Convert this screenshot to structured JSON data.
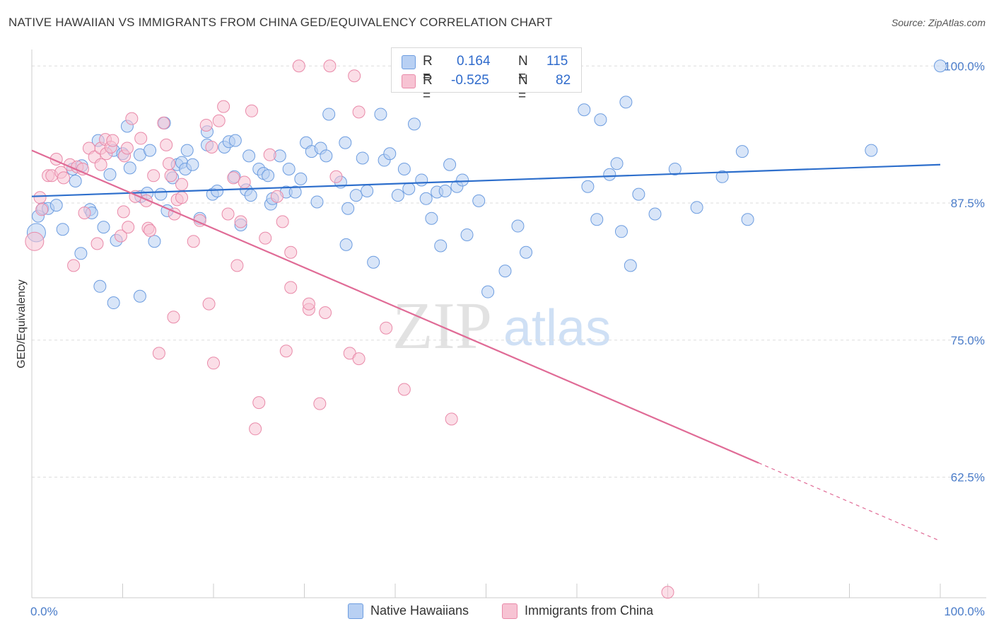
{
  "title": "NATIVE HAWAIIAN VS IMMIGRANTS FROM CHINA GED/EQUIVALENCY CORRELATION CHART",
  "source": "Source: ZipAtlas.com",
  "watermark": {
    "zip": "ZIP",
    "atlas": "atlas"
  },
  "legend_top": {
    "rows": [
      {
        "r_label": "R =",
        "r_value": "0.164",
        "n_label": "N =",
        "n_value": "115"
      },
      {
        "r_label": "R =",
        "r_value": "-0.525",
        "n_label": "N =",
        "n_value": "82"
      }
    ]
  },
  "legend_bottom": {
    "items": [
      "Native Hawaiians",
      "Immigrants from China"
    ]
  },
  "colors": {
    "blue_fill": "#b8d0f3",
    "blue_stroke": "#6d9de0",
    "blue_line": "#2e6fcc",
    "pink_fill": "#f7c3d3",
    "pink_stroke": "#e98aa9",
    "pink_line": "#e06b96",
    "tick_text": "#4a7cc9",
    "grid": "#dddddd"
  },
  "chart_data": {
    "type": "scatter",
    "title": "NATIVE HAWAIIAN VS IMMIGRANTS FROM CHINA GED/EQUIVALENCY CORRELATION CHART",
    "xlabel": "",
    "ylabel": "GED/Equivalency",
    "xlim": [
      0,
      100
    ],
    "ylim": [
      51.5,
      101.5
    ],
    "x_tick_labels": [
      "0.0%",
      "100.0%"
    ],
    "y_ticks": [
      {
        "value": 62.5,
        "label": "62.5%"
      },
      {
        "value": 75.0,
        "label": "75.0%"
      },
      {
        "value": 87.5,
        "label": "87.5%"
      },
      {
        "value": 100.0,
        "label": "100.0%"
      }
    ],
    "grid": true,
    "legend_position": "bottom",
    "series": [
      {
        "name": "Native Hawaiians",
        "trend": {
          "x": [
            0,
            100
          ],
          "y": [
            88.1,
            91.0
          ]
        },
        "points": [
          [
            0.5,
            84.8
          ],
          [
            0.7,
            86.3
          ],
          [
            1.2,
            87.0
          ],
          [
            1.8,
            87.0
          ],
          [
            2.7,
            87.3
          ],
          [
            3.4,
            85.1
          ],
          [
            4.5,
            90.6
          ],
          [
            4.8,
            89.5
          ],
          [
            5.5,
            90.9
          ],
          [
            6.4,
            86.9
          ],
          [
            6.6,
            86.6
          ],
          [
            5.4,
            82.9
          ],
          [
            7.3,
            93.2
          ],
          [
            7.5,
            79.9
          ],
          [
            7.9,
            85.3
          ],
          [
            9.0,
            92.3
          ],
          [
            8.6,
            90.1
          ],
          [
            9.0,
            78.4
          ],
          [
            9.3,
            84.1
          ],
          [
            10.0,
            92.0
          ],
          [
            10.5,
            94.5
          ],
          [
            10.8,
            90.7
          ],
          [
            11.9,
            91.9
          ],
          [
            12.0,
            88.1
          ],
          [
            11.9,
            79.0
          ],
          [
            12.7,
            88.4
          ],
          [
            13.0,
            92.3
          ],
          [
            13.5,
            84.0
          ],
          [
            14.2,
            88.3
          ],
          [
            14.6,
            94.8
          ],
          [
            14.9,
            86.8
          ],
          [
            15.5,
            89.8
          ],
          [
            16.0,
            91.0
          ],
          [
            16.5,
            91.2
          ],
          [
            16.9,
            90.6
          ],
          [
            17.1,
            92.3
          ],
          [
            17.7,
            91.0
          ],
          [
            18.5,
            86.1
          ],
          [
            19.3,
            94.0
          ],
          [
            19.3,
            92.8
          ],
          [
            19.9,
            88.3
          ],
          [
            20.4,
            88.6
          ],
          [
            21.2,
            92.6
          ],
          [
            21.7,
            93.1
          ],
          [
            22.3,
            89.9
          ],
          [
            22.4,
            93.2
          ],
          [
            23.0,
            85.5
          ],
          [
            23.6,
            88.7
          ],
          [
            23.9,
            91.8
          ],
          [
            24.1,
            88.2
          ],
          [
            25.0,
            90.6
          ],
          [
            25.5,
            90.2
          ],
          [
            26.0,
            90.0
          ],
          [
            26.3,
            87.4
          ],
          [
            26.5,
            87.9
          ],
          [
            27.3,
            91.8
          ],
          [
            28.0,
            88.5
          ],
          [
            28.3,
            90.6
          ],
          [
            29.0,
            88.5
          ],
          [
            29.6,
            89.7
          ],
          [
            30.2,
            93.0
          ],
          [
            30.8,
            92.2
          ],
          [
            31.4,
            87.6
          ],
          [
            31.8,
            92.5
          ],
          [
            32.4,
            91.8
          ],
          [
            32.7,
            95.6
          ],
          [
            34.0,
            89.4
          ],
          [
            34.5,
            93.0
          ],
          [
            34.6,
            83.7
          ],
          [
            34.8,
            87.0
          ],
          [
            35.7,
            88.2
          ],
          [
            36.4,
            91.6
          ],
          [
            36.9,
            88.6
          ],
          [
            37.6,
            82.1
          ],
          [
            38.4,
            95.6
          ],
          [
            38.8,
            91.4
          ],
          [
            39.4,
            92.0
          ],
          [
            40.3,
            88.2
          ],
          [
            41.0,
            90.6
          ],
          [
            41.5,
            88.8
          ],
          [
            42.1,
            94.7
          ],
          [
            42.9,
            89.6
          ],
          [
            43.4,
            87.9
          ],
          [
            44.0,
            86.1
          ],
          [
            44.6,
            88.5
          ],
          [
            45.0,
            83.6
          ],
          [
            45.5,
            88.6
          ],
          [
            46.0,
            91.0
          ],
          [
            46.8,
            89.0
          ],
          [
            47.4,
            89.6
          ],
          [
            47.9,
            84.6
          ],
          [
            49.2,
            87.7
          ],
          [
            50.2,
            79.4
          ],
          [
            52.1,
            81.3
          ],
          [
            53.5,
            85.4
          ],
          [
            54.4,
            83.0
          ],
          [
            59.4,
            100.0
          ],
          [
            60.8,
            96.0
          ],
          [
            61.2,
            89.0
          ],
          [
            62.2,
            86.0
          ],
          [
            62.6,
            95.1
          ],
          [
            63.6,
            90.1
          ],
          [
            64.4,
            91.1
          ],
          [
            64.9,
            84.9
          ],
          [
            65.4,
            96.7
          ],
          [
            65.9,
            81.8
          ],
          [
            66.8,
            88.3
          ],
          [
            68.6,
            86.5
          ],
          [
            70.8,
            90.6
          ],
          [
            73.2,
            87.1
          ],
          [
            76.0,
            89.9
          ],
          [
            78.2,
            92.2
          ],
          [
            78.8,
            86.0
          ],
          [
            92.4,
            92.3
          ],
          [
            100.0,
            100.0
          ]
        ]
      },
      {
        "name": "Immigrants from China",
        "trend": {
          "x": [
            0,
            80
          ],
          "y": [
            92.3,
            63.8
          ]
        },
        "points": [
          [
            0.3,
            84.0
          ],
          [
            0.9,
            88.0
          ],
          [
            1.1,
            86.9
          ],
          [
            1.8,
            90.0
          ],
          [
            2.2,
            90.0
          ],
          [
            2.7,
            91.5
          ],
          [
            3.2,
            90.3
          ],
          [
            3.5,
            89.8
          ],
          [
            4.2,
            91.0
          ],
          [
            5.0,
            90.8
          ],
          [
            4.6,
            81.8
          ],
          [
            5.6,
            90.6
          ],
          [
            5.8,
            86.6
          ],
          [
            6.3,
            92.5
          ],
          [
            6.9,
            91.7
          ],
          [
            7.2,
            83.8
          ],
          [
            7.6,
            91.0
          ],
          [
            7.6,
            92.5
          ],
          [
            8.2,
            92.0
          ],
          [
            8.1,
            93.3
          ],
          [
            8.7,
            92.6
          ],
          [
            8.9,
            93.2
          ],
          [
            9.8,
            84.5
          ],
          [
            10.1,
            86.7
          ],
          [
            10.2,
            91.8
          ],
          [
            10.6,
            85.3
          ],
          [
            10.5,
            92.5
          ],
          [
            11.0,
            95.2
          ],
          [
            11.4,
            88.1
          ],
          [
            12.0,
            93.4
          ],
          [
            12.6,
            87.7
          ],
          [
            12.8,
            85.2
          ],
          [
            13.0,
            85.0
          ],
          [
            13.4,
            90.0
          ],
          [
            14.0,
            73.8
          ],
          [
            14.5,
            94.8
          ],
          [
            14.8,
            92.8
          ],
          [
            15.1,
            91.1
          ],
          [
            15.3,
            90.0
          ],
          [
            15.7,
            86.5
          ],
          [
            15.6,
            77.1
          ],
          [
            16.0,
            87.8
          ],
          [
            16.5,
            88.0
          ],
          [
            16.5,
            89.2
          ],
          [
            17.8,
            84.0
          ],
          [
            18.5,
            85.9
          ],
          [
            19.2,
            94.6
          ],
          [
            19.5,
            78.3
          ],
          [
            19.8,
            92.6
          ],
          [
            20.0,
            72.9
          ],
          [
            20.6,
            95.0
          ],
          [
            21.1,
            96.3
          ],
          [
            21.6,
            86.5
          ],
          [
            22.2,
            89.8
          ],
          [
            22.6,
            81.8
          ],
          [
            23.0,
            85.8
          ],
          [
            23.4,
            89.4
          ],
          [
            24.2,
            95.9
          ],
          [
            24.6,
            66.9
          ],
          [
            25.0,
            69.3
          ],
          [
            25.7,
            84.3
          ],
          [
            26.2,
            91.9
          ],
          [
            27.0,
            88.1
          ],
          [
            27.6,
            85.8
          ],
          [
            28.0,
            74.0
          ],
          [
            28.5,
            79.8
          ],
          [
            28.5,
            83.0
          ],
          [
            29.4,
            100.0
          ],
          [
            30.5,
            77.8
          ],
          [
            30.5,
            78.3
          ],
          [
            31.7,
            69.2
          ],
          [
            32.3,
            77.5
          ],
          [
            32.8,
            100.0
          ],
          [
            33.5,
            89.9
          ],
          [
            35.0,
            73.8
          ],
          [
            35.5,
            99.1
          ],
          [
            36.0,
            95.8
          ],
          [
            36.0,
            73.3
          ],
          [
            39.0,
            76.1
          ],
          [
            41.0,
            70.5
          ],
          [
            46.2,
            67.8
          ],
          [
            70.0,
            52.0
          ]
        ]
      }
    ]
  }
}
